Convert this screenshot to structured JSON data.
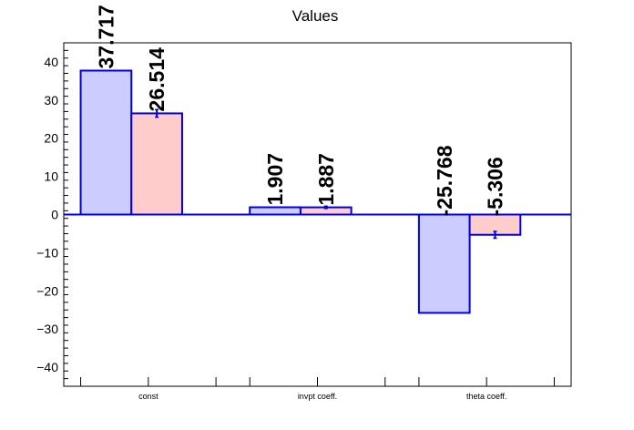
{
  "chart_data": {
    "type": "bar",
    "title": "Values",
    "categories": [
      "const",
      "invpt coeff.",
      "theta coeff."
    ],
    "series": [
      {
        "values": [
          37.717,
          1.907,
          -25.768
        ],
        "labels": [
          "37.717",
          "1.907",
          "-25.768"
        ],
        "errors": [
          0,
          0,
          0
        ],
        "fill": "#ccccff",
        "stroke": "#0000dd"
      },
      {
        "values": [
          26.514,
          1.887,
          -5.306
        ],
        "labels": [
          "26.514",
          "1.887",
          "-5.306"
        ],
        "errors": [
          1.0,
          0.3,
          0.9
        ],
        "fill": "#ffcccc",
        "stroke": "#0000dd"
      }
    ],
    "ylim": [
      -45,
      45
    ],
    "yticks": [
      -40,
      -30,
      -20,
      -10,
      0,
      10,
      20,
      30,
      40
    ],
    "ytick_labels": [
      "−40",
      "−30",
      "−20",
      "−10",
      "0",
      "10",
      "20",
      "30",
      "40"
    ],
    "grid": false,
    "legend": "none",
    "zero_line_color": "#0000dd"
  }
}
